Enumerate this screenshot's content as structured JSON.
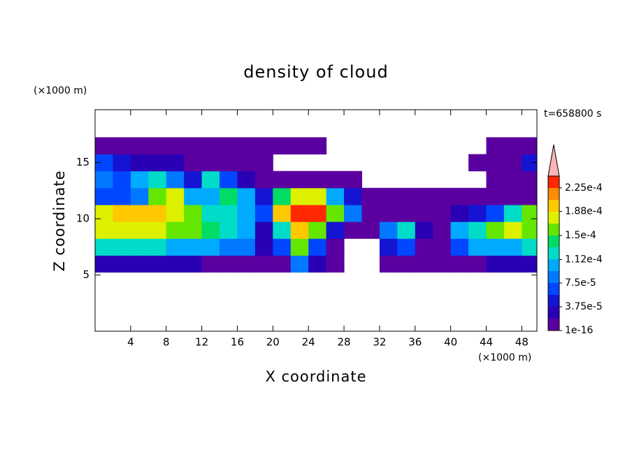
{
  "chart_data": {
    "type": "contour",
    "title": "density of cloud",
    "time_label": "t=658800 s",
    "x_label": "X coordinate",
    "y_label": "Z coordinate",
    "x_unit": "(×1000 m)",
    "y_unit": "(×1000 m)",
    "xlim": [
      0,
      49.7
    ],
    "ylim": [
      0,
      19.7
    ],
    "xticks": [
      4,
      8,
      12,
      16,
      20,
      24,
      28,
      32,
      36,
      40,
      44,
      48
    ],
    "yticks": [
      5,
      10,
      15
    ],
    "x": [
      1,
      3,
      5,
      7,
      9,
      11,
      13,
      15,
      17,
      19,
      21,
      23,
      25,
      27,
      29,
      31,
      33,
      35,
      37,
      39,
      41,
      43,
      45,
      47,
      49
    ],
    "z": [
      6,
      7.5,
      9,
      10.5,
      12,
      13.5,
      15,
      16.5
    ],
    "values": [
      [
        2e-05,
        2e-05,
        2.5e-05,
        2e-05,
        2e-05,
        2e-05,
        1.5e-05,
        1.5e-05,
        1e-05,
        5e-06,
        5e-06,
        8e-05,
        3e-05,
        5e-06,
        null,
        null,
        1e-05,
        1e-05,
        5e-06,
        5e-06,
        1e-05,
        1.5e-05,
        2e-05,
        2e-05,
        2e-05
      ],
      [
        0.00012,
        0.00013,
        0.00012,
        0.00012,
        0.00011,
        0.00011,
        0.0001,
        9e-05,
        8e-05,
        2e-05,
        6e-05,
        0.00015,
        6e-05,
        1e-05,
        null,
        null,
        5e-05,
        7e-05,
        1e-05,
        5e-06,
        6e-05,
        0.0001,
        0.00011,
        0.00011,
        0.00012
      ],
      [
        0.00017,
        0.00018,
        0.00018,
        0.00017,
        0.00016,
        0.00015,
        0.00014,
        0.00012,
        0.0001,
        3e-05,
        0.00012,
        0.00019,
        0.00015,
        5e-05,
        5e-06,
        5e-06,
        8e-05,
        0.00012,
        2e-05,
        1e-05,
        0.0001,
        0.00013,
        0.00015,
        0.00017,
        0.00016
      ],
      [
        0.00018,
        0.00019,
        0.00019,
        0.0002,
        0.00018,
        0.00015,
        0.00013,
        0.00012,
        0.00011,
        7e-05,
        0.00019,
        0.00023,
        0.00023,
        0.00016,
        9e-05,
        1e-05,
        5e-06,
        5e-06,
        5e-06,
        5e-06,
        2e-05,
        4e-05,
        6e-05,
        0.00012,
        0.00016
      ],
      [
        6e-05,
        7e-05,
        9e-05,
        0.00016,
        0.00018,
        0.00011,
        0.0001,
        0.00014,
        0.00011,
        5e-05,
        0.00014,
        0.00018,
        0.00017,
        0.00011,
        4e-05,
        1e-05,
        5e-06,
        5e-06,
        5e-06,
        5e-06,
        5e-06,
        5e-06,
        5e-06,
        5e-06,
        1e-05
      ],
      [
        8e-05,
        7e-05,
        0.0001,
        0.00012,
        8e-05,
        5e-05,
        0.00012,
        6e-05,
        2e-05,
        1e-05,
        1e-05,
        5e-06,
        5e-06,
        5e-06,
        5e-06,
        null,
        null,
        null,
        null,
        null,
        null,
        null,
        5e-06,
        5e-06,
        1e-05
      ],
      [
        7e-05,
        5e-05,
        3e-05,
        2e-05,
        3e-05,
        1e-05,
        1e-05,
        5e-06,
        5e-06,
        5e-06,
        null,
        null,
        null,
        null,
        null,
        null,
        null,
        null,
        null,
        null,
        null,
        5e-06,
        1e-05,
        1e-05,
        5e-05
      ],
      [
        1e-05,
        1e-05,
        5e-06,
        5e-06,
        5e-06,
        5e-06,
        5e-06,
        5e-06,
        5e-06,
        5e-06,
        5e-06,
        5e-06,
        5e-06,
        null,
        null,
        null,
        null,
        null,
        null,
        null,
        null,
        null,
        5e-06,
        5e-06,
        5e-06
      ]
    ],
    "levels": [
      1e-16,
      1.875e-05,
      3.75e-05,
      5.625e-05,
      7.5e-05,
      9.375e-05,
      0.0001125,
      0.00013125,
      0.00015,
      0.00016875,
      0.0001875,
      0.00020625,
      0.000225,
      0.00024375
    ],
    "colors": [
      "#5a00a0",
      "#2a00b4",
      "#1414d2",
      "#0046ff",
      "#0078ff",
      "#00aaff",
      "#00dcc8",
      "#00dc64",
      "#64e600",
      "#dcf000",
      "#ffc800",
      "#ff8c00",
      "#ff2800"
    ],
    "over_color": "#ffb4b4",
    "colorbar_ticks": [
      1e-16,
      {
        "value": 3.75e-05,
        "label": "3.75e-5"
      },
      {
        "value": 7.5e-05,
        "label": "7.5e-5"
      },
      {
        "value": 0.000112,
        "label": "1.12e-4"
      },
      {
        "value": 0.00015,
        "label": "1.5e-4"
      },
      {
        "value": 0.000188,
        "label": "1.88e-4"
      },
      {
        "value": 0.000225,
        "label": "2.25e-4"
      }
    ]
  }
}
